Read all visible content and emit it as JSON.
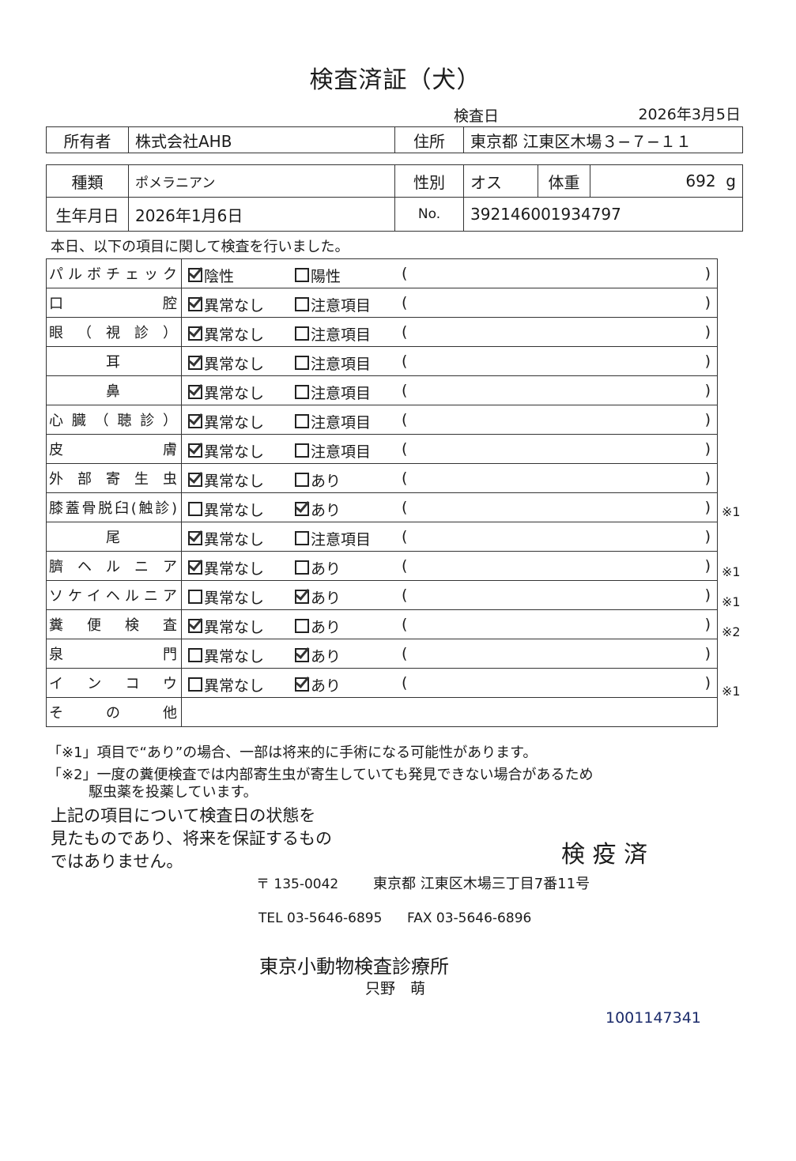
{
  "title": "検査済証（犬）",
  "exam_date_label": "検査日",
  "exam_date": "2026年3月5日",
  "owner": {
    "label": "所有者",
    "value": "株式会社AHB",
    "address_label": "住所",
    "address": "東京都 江東区木場３−７−１１"
  },
  "pet": {
    "breed_label": "種類",
    "breed": "ポメラニアン",
    "sex_label": "性別",
    "sex": "オス",
    "weight_label": "体重",
    "weight": "692",
    "weight_unit": "g",
    "birth_label": "生年月日",
    "birth": "2026年1月6日",
    "no_label": "No.",
    "no": "392146001934797"
  },
  "intro": "本日、以下の項目に関して検査を行いました。",
  "checklist": [
    {
      "item": "パルボチェック",
      "opt1": "陰性",
      "opt2": "陽性",
      "checked": 1,
      "note": ""
    },
    {
      "item": "口腔",
      "opt1": "異常なし",
      "opt2": "注意項目",
      "checked": 1,
      "note": ""
    },
    {
      "item": "眼（視診）",
      "opt1": "異常なし",
      "opt2": "注意項目",
      "checked": 1,
      "note": ""
    },
    {
      "item": "耳",
      "opt1": "異常なし",
      "opt2": "注意項目",
      "checked": 1,
      "note": "",
      "center": true
    },
    {
      "item": "鼻",
      "opt1": "異常なし",
      "opt2": "注意項目",
      "checked": 1,
      "note": "",
      "center": true
    },
    {
      "item": "心臓（聴診）",
      "opt1": "異常なし",
      "opt2": "注意項目",
      "checked": 1,
      "note": ""
    },
    {
      "item": "皮膚",
      "opt1": "異常なし",
      "opt2": "注意項目",
      "checked": 1,
      "note": ""
    },
    {
      "item": "外部寄生虫",
      "opt1": "異常なし",
      "opt2": "あり",
      "checked": 1,
      "note": ""
    },
    {
      "item": "膝蓋骨脱臼(触診)",
      "opt1": "異常なし",
      "opt2": "あり",
      "checked": 2,
      "note": "※1"
    },
    {
      "item": "尾",
      "opt1": "異常なし",
      "opt2": "注意項目",
      "checked": 1,
      "note": "",
      "center": true
    },
    {
      "item": "臍ヘルニア",
      "opt1": "異常なし",
      "opt2": "あり",
      "checked": 1,
      "note": "※1"
    },
    {
      "item": "ソケイヘルニア",
      "opt1": "異常なし",
      "opt2": "あり",
      "checked": 2,
      "note": "※1"
    },
    {
      "item": "糞便検査",
      "opt1": "異常なし",
      "opt2": "あり",
      "checked": 1,
      "note": "※2"
    },
    {
      "item": "泉門",
      "opt1": "異常なし",
      "opt2": "あり",
      "checked": 2,
      "note": ""
    },
    {
      "item": "インコウ",
      "opt1": "異常なし",
      "opt2": "あり",
      "checked": 2,
      "note": "※1"
    }
  ],
  "other_label": "その他",
  "paren_open": "(",
  "paren_close": ")",
  "footnote1": "「※1」項目で“あり”の場合、一部は将来的に手術になる可能性があります。",
  "footnote2": "「※2」一度の糞便検査では内部寄生虫が寄生していても発見できない場合があるため",
  "footnote2b": "駆虫薬を投薬しています。",
  "disclaimer": [
    "上記の項目について検査日の状態を",
    "見たものであり、将来を保証するもの",
    "ではありません。"
  ],
  "stamp": "検 疫 済",
  "clinic": {
    "postal": "〒 135-0042",
    "address": "東京都 江東区木場三丁目7番11号",
    "tel": "TEL 03-5646-6895",
    "fax": "FAX 03-5646-6896",
    "name": "東京小動物検査診療所",
    "doctor": "只野　萌"
  },
  "serial": "1001147341"
}
